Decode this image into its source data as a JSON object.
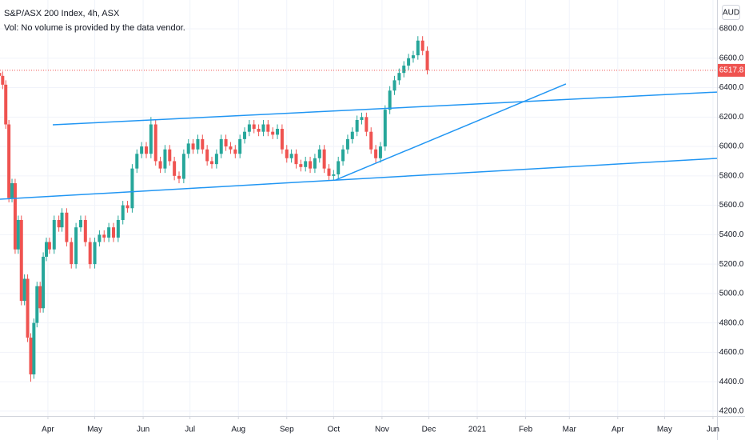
{
  "chart_data": {
    "type": "candlestick",
    "title": "S&P/ASX 200 Index, 4h, ASX",
    "subtitle": "Vol: No volume is provided by the data vendor.",
    "currency": "AUD",
    "up_color": "#26a69a",
    "down_color": "#ef5350",
    "line_color": "#2196f3",
    "grid": true,
    "xlim": [
      60.3,
      519.6
    ],
    "ylim": [
      4167,
      6996
    ],
    "xticks": [
      {
        "value": 91,
        "label": "Apr"
      },
      {
        "value": 121,
        "label": "May"
      },
      {
        "value": 152,
        "label": "Jun"
      },
      {
        "value": 182,
        "label": "Jul"
      },
      {
        "value": 213,
        "label": "Aug"
      },
      {
        "value": 244,
        "label": "Sep"
      },
      {
        "value": 274,
        "label": "Oct"
      },
      {
        "value": 305,
        "label": "Nov"
      },
      {
        "value": 335,
        "label": "Dec"
      },
      {
        "value": 366,
        "label": "2021"
      },
      {
        "value": 397,
        "label": "Feb"
      },
      {
        "value": 425,
        "label": "Mar"
      },
      {
        "value": 456,
        "label": "Apr"
      },
      {
        "value": 486,
        "label": "May"
      },
      {
        "value": 517,
        "label": "Jun"
      }
    ],
    "yticks": [
      {
        "value": 4200,
        "label": "4200.0"
      },
      {
        "value": 4400,
        "label": "4400.0"
      },
      {
        "value": 4600,
        "label": "4600.0"
      },
      {
        "value": 4800,
        "label": "4800.0"
      },
      {
        "value": 5000,
        "label": "5000.0"
      },
      {
        "value": 5200,
        "label": "5200.0"
      },
      {
        "value": 5400,
        "label": "5400.0"
      },
      {
        "value": 5600,
        "label": "5600.0"
      },
      {
        "value": 5800,
        "label": "5800.0"
      },
      {
        "value": 6000,
        "label": "6000.0"
      },
      {
        "value": 6200,
        "label": "6200.0"
      },
      {
        "value": 6400,
        "label": "6400.0"
      },
      {
        "value": 6600,
        "label": "6600.0"
      },
      {
        "value": 6800,
        "label": "6800.0"
      }
    ],
    "x": [
      60,
      62,
      64,
      66,
      68,
      70,
      72,
      74,
      76,
      78,
      80,
      82,
      84,
      86,
      88,
      90,
      92,
      95,
      98,
      100,
      103,
      106,
      109,
      112,
      115,
      118,
      121,
      124,
      127,
      130,
      133,
      136,
      139,
      142,
      145,
      148,
      151,
      154,
      157,
      160,
      163,
      166,
      169,
      172,
      175,
      178,
      181,
      184,
      187,
      190,
      193,
      196,
      199,
      202,
      205,
      208,
      211,
      214,
      217,
      220,
      223,
      226,
      229,
      232,
      235,
      238,
      241,
      244,
      247,
      250,
      253,
      256,
      259,
      262,
      265,
      268,
      271,
      274,
      277,
      280,
      283,
      286,
      289,
      292,
      295,
      298,
      301,
      304,
      307,
      310,
      313,
      316,
      319,
      322,
      325,
      328,
      331,
      334
    ],
    "ohlc": [
      [
        6500,
        6530,
        6450,
        6480
      ],
      [
        6480,
        6510,
        6390,
        6420
      ],
      [
        6420,
        6450,
        6120,
        6150
      ],
      [
        6150,
        6180,
        5620,
        5650
      ],
      [
        5650,
        5780,
        5620,
        5750
      ],
      [
        5750,
        5780,
        5270,
        5300
      ],
      [
        5300,
        5530,
        5270,
        5500
      ],
      [
        5500,
        5530,
        4920,
        4950
      ],
      [
        4950,
        5130,
        4920,
        5100
      ],
      [
        5100,
        5130,
        4670,
        4700
      ],
      [
        4700,
        4730,
        4400,
        4450
      ],
      [
        4450,
        4830,
        4420,
        4800
      ],
      [
        4800,
        5080,
        4770,
        5050
      ],
      [
        5050,
        5080,
        4870,
        4900
      ],
      [
        4900,
        5280,
        4870,
        5250
      ],
      [
        5250,
        5380,
        5220,
        5350
      ],
      [
        5350,
        5380,
        5270,
        5300
      ],
      [
        5300,
        5530,
        5270,
        5500
      ],
      [
        5500,
        5530,
        5420,
        5450
      ],
      [
        5450,
        5580,
        5420,
        5550
      ],
      [
        5550,
        5580,
        5320,
        5350
      ],
      [
        5350,
        5380,
        5170,
        5200
      ],
      [
        5200,
        5480,
        5170,
        5450
      ],
      [
        5450,
        5530,
        5420,
        5500
      ],
      [
        5500,
        5530,
        5320,
        5350
      ],
      [
        5350,
        5380,
        5170,
        5200
      ],
      [
        5200,
        5380,
        5170,
        5350
      ],
      [
        5350,
        5430,
        5320,
        5400
      ],
      [
        5400,
        5430,
        5350,
        5380
      ],
      [
        5380,
        5480,
        5350,
        5450
      ],
      [
        5450,
        5480,
        5350,
        5380
      ],
      [
        5380,
        5530,
        5350,
        5500
      ],
      [
        5500,
        5630,
        5470,
        5600
      ],
      [
        5600,
        5630,
        5550,
        5580
      ],
      [
        5580,
        5880,
        5550,
        5850
      ],
      [
        5850,
        5980,
        5820,
        5950
      ],
      [
        5950,
        6030,
        5920,
        6000
      ],
      [
        6000,
        6030,
        5920,
        5950
      ],
      [
        5950,
        6200,
        5920,
        6150
      ],
      [
        6150,
        6180,
        5870,
        5900
      ],
      [
        5900,
        5930,
        5820,
        5850
      ],
      [
        5850,
        6010,
        5820,
        5980
      ],
      [
        5980,
        6010,
        5870,
        5900
      ],
      [
        5900,
        5930,
        5770,
        5800
      ],
      [
        5800,
        5830,
        5750,
        5780
      ],
      [
        5780,
        5980,
        5750,
        5950
      ],
      [
        5950,
        6050,
        5920,
        6020
      ],
      [
        6020,
        6050,
        5950,
        5980
      ],
      [
        5980,
        6080,
        5950,
        6050
      ],
      [
        6050,
        6080,
        5950,
        5980
      ],
      [
        5980,
        6010,
        5870,
        5900
      ],
      [
        5900,
        5930,
        5850,
        5880
      ],
      [
        5880,
        5980,
        5850,
        5950
      ],
      [
        5950,
        6080,
        5920,
        6050
      ],
      [
        6050,
        6080,
        5970,
        6000
      ],
      [
        6000,
        6030,
        5950,
        5980
      ],
      [
        5980,
        6010,
        5920,
        5950
      ],
      [
        5950,
        6080,
        5920,
        6050
      ],
      [
        6050,
        6130,
        6020,
        6100
      ],
      [
        6100,
        6180,
        6070,
        6150
      ],
      [
        6150,
        6180,
        6090,
        6120
      ],
      [
        6120,
        6150,
        6070,
        6100
      ],
      [
        6100,
        6180,
        6070,
        6150
      ],
      [
        6150,
        6180,
        6070,
        6100
      ],
      [
        6100,
        6130,
        6050,
        6080
      ],
      [
        6080,
        6150,
        6050,
        6120
      ],
      [
        6120,
        6150,
        5950,
        5980
      ],
      [
        5980,
        6010,
        5890,
        5920
      ],
      [
        5920,
        5980,
        5890,
        5950
      ],
      [
        5950,
        5980,
        5850,
        5880
      ],
      [
        5880,
        5910,
        5830,
        5860
      ],
      [
        5860,
        5930,
        5830,
        5900
      ],
      [
        5900,
        5930,
        5820,
        5850
      ],
      [
        5850,
        5950,
        5820,
        5920
      ],
      [
        5920,
        6010,
        5890,
        5980
      ],
      [
        5980,
        6010,
        5820,
        5850
      ],
      [
        5850,
        5880,
        5770,
        5800
      ],
      [
        5800,
        5840,
        5770,
        5810
      ],
      [
        5810,
        5930,
        5780,
        5900
      ],
      [
        5900,
        6010,
        5870,
        5980
      ],
      [
        5980,
        6080,
        5950,
        6050
      ],
      [
        6050,
        6130,
        6020,
        6100
      ],
      [
        6100,
        6210,
        6070,
        6180
      ],
      [
        6180,
        6230,
        6150,
        6200
      ],
      [
        6200,
        6230,
        6070,
        6100
      ],
      [
        6100,
        6130,
        5950,
        5980
      ],
      [
        5980,
        6010,
        5890,
        5920
      ],
      [
        5920,
        6030,
        5890,
        6000
      ],
      [
        6000,
        6280,
        5970,
        6250
      ],
      [
        6250,
        6410,
        6220,
        6380
      ],
      [
        6380,
        6480,
        6350,
        6450
      ],
      [
        6450,
        6530,
        6420,
        6500
      ],
      [
        6500,
        6580,
        6470,
        6550
      ],
      [
        6550,
        6630,
        6520,
        6600
      ],
      [
        6600,
        6650,
        6570,
        6620
      ],
      [
        6620,
        6750,
        6590,
        6720
      ],
      [
        6720,
        6750,
        6620,
        6650
      ],
      [
        6650,
        6680,
        6490,
        6517.8
      ]
    ],
    "trend_lines": [
      [
        [
          94.1,
          6147
        ],
        [
          519.6,
          6370
        ]
      ],
      [
        [
          60.3,
          5641
        ],
        [
          519.6,
          5919
        ]
      ],
      [
        [
          275.3,
          5772
        ],
        [
          422.8,
          6425
        ]
      ]
    ]
  }
}
